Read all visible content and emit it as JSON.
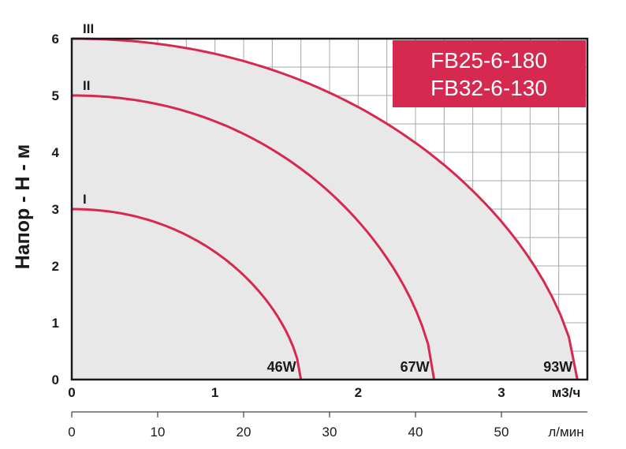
{
  "chart_data": {
    "type": "line",
    "ylabel": "Напор - H - м",
    "xlabel": "м3/ч",
    "x2label": "л/мин",
    "models": [
      "FB25-6-180",
      "FB32-6-130"
    ],
    "xlim": [
      0,
      3.6
    ],
    "ylim": [
      0,
      6
    ],
    "x_ticks": [
      "0",
      "1",
      "2",
      "3"
    ],
    "x2_ticks": [
      "0",
      "10",
      "20",
      "30",
      "40",
      "50"
    ],
    "y_ticks": [
      "0",
      "1",
      "2",
      "3",
      "4",
      "5",
      "6"
    ],
    "grid": true,
    "colors": {
      "curve": "#d6294f",
      "fill": "#e8e8e8",
      "model_box": "#d6294f",
      "grid": "#a8a8a8"
    },
    "series": [
      {
        "name": "I",
        "power": "46W",
        "max_flow": 1.6,
        "x": [
          0,
          0.4,
          0.8,
          1.2,
          1.5,
          1.6
        ],
        "y": [
          3,
          2.8,
          2.3,
          1.5,
          0.7,
          0
        ]
      },
      {
        "name": "II",
        "power": "67W",
        "max_flow": 2.53,
        "x": [
          0,
          0.6,
          1.2,
          1.8,
          2.3,
          2.53
        ],
        "y": [
          5,
          4.7,
          3.95,
          2.8,
          1.4,
          0
        ]
      },
      {
        "name": "III",
        "power": "93W",
        "max_flow": 3.53,
        "x": [
          0,
          0.8,
          1.6,
          2.4,
          3.2,
          3.53
        ],
        "y": [
          6,
          5.7,
          5,
          3.8,
          1.9,
          0
        ]
      }
    ]
  }
}
